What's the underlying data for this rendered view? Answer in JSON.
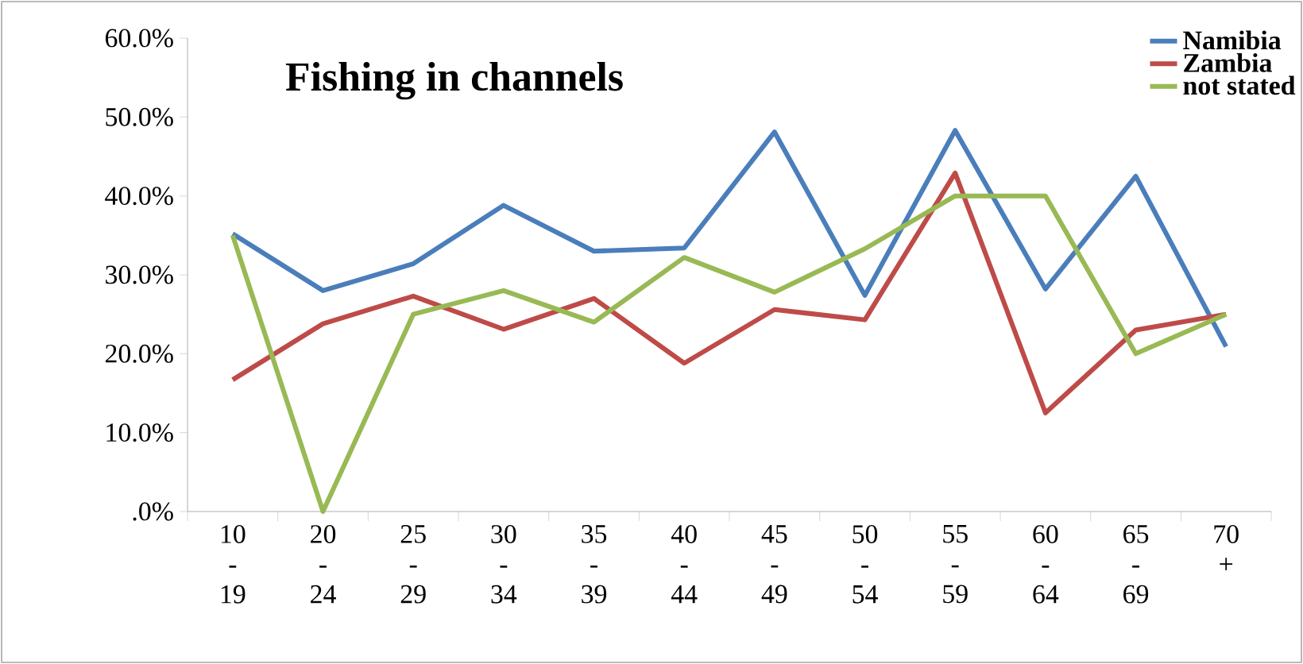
{
  "chart_data": {
    "type": "line",
    "title": "Fishing in channels",
    "categories": [
      "10 - 19",
      "20 - 24",
      "25 - 29",
      "30 - 34",
      "35 - 39",
      "40 - 44",
      "45 - 49",
      "50 - 54",
      "55 - 59",
      "60 - 64",
      "65 - 69",
      "70 +"
    ],
    "series": [
      {
        "name": "Namibia",
        "color": "#4a7ebb",
        "values": [
          35.2,
          28,
          31.4,
          38.8,
          33,
          33.4,
          48.1,
          27.4,
          48.3,
          28.2,
          42.5,
          20.9
        ]
      },
      {
        "name": "Zambia",
        "color": "#be4b48",
        "values": [
          16.7,
          23.8,
          27.3,
          23.1,
          27,
          18.8,
          25.6,
          24.3,
          42.9,
          12.5,
          23,
          25
        ]
      },
      {
        "name": "not stated",
        "color": "#98b954",
        "values": [
          35,
          0,
          25,
          28,
          24,
          32.2,
          27.8,
          33.3,
          40,
          40,
          20,
          25
        ]
      }
    ],
    "ylim": [
      0,
      60
    ],
    "yticks": [
      {
        "value": 0,
        "label": ".0%"
      },
      {
        "value": 10,
        "label": "10.0%"
      },
      {
        "value": 20,
        "label": "20.0%"
      },
      {
        "value": 30,
        "label": "30.0%"
      },
      {
        "value": 40,
        "label": "40.0%"
      },
      {
        "value": 50,
        "label": "50.0%"
      },
      {
        "value": 60,
        "label": "60.0%"
      }
    ],
    "grid": false,
    "legend": "top right",
    "marker": "none",
    "line_style": "solid"
  }
}
